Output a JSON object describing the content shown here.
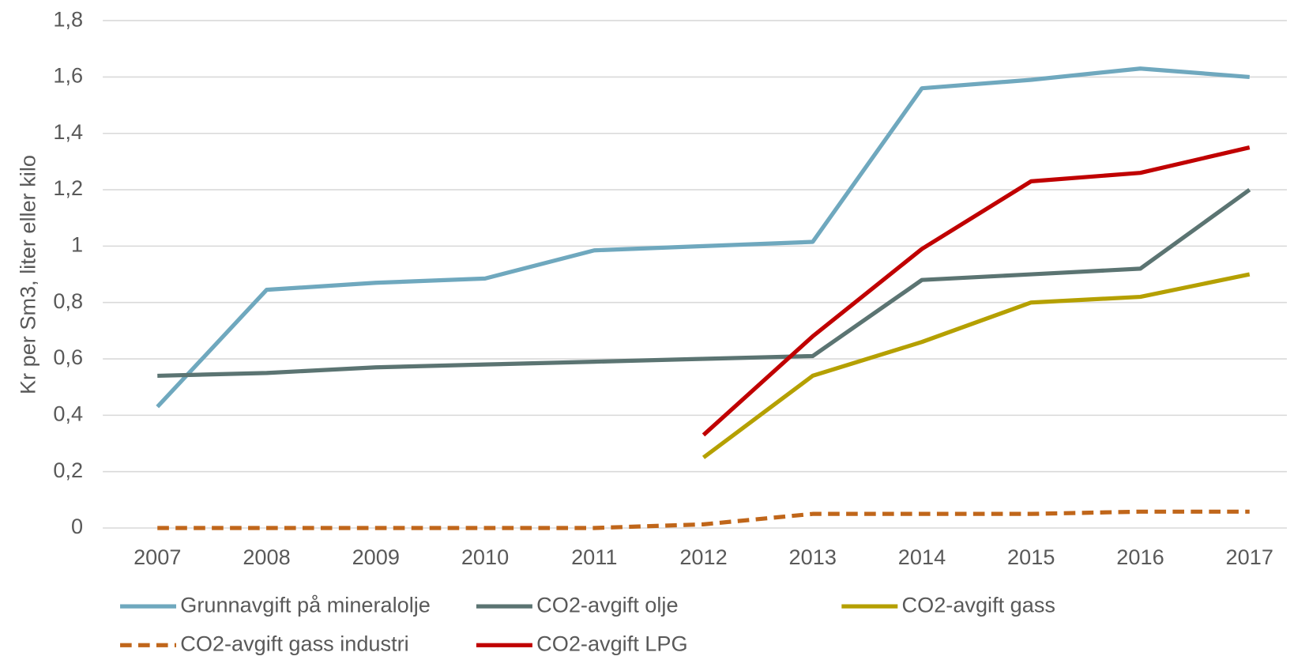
{
  "chart_data": {
    "type": "line",
    "y_label": "Kr per Sm3, liter eller kilo",
    "categories": [
      "2007",
      "2008",
      "2009",
      "2010",
      "2011",
      "2012",
      "2013",
      "2014",
      "2015",
      "2016",
      "2017"
    ],
    "series": [
      {
        "name": "Grunnavgift på mineralolje",
        "color": "#6fa8be",
        "dash": false,
        "values": [
          0.43,
          0.845,
          0.87,
          0.885,
          0.985,
          1.0,
          1.015,
          1.56,
          1.59,
          1.63,
          1.6
        ]
      },
      {
        "name": "CO2-avgift olje",
        "color": "#5b7472",
        "dash": false,
        "values": [
          0.54,
          0.55,
          0.57,
          0.58,
          0.59,
          0.6,
          0.61,
          0.88,
          0.9,
          0.92,
          1.2
        ]
      },
      {
        "name": "CO2-avgift gass",
        "color": "#b5a000",
        "dash": false,
        "values": [
          null,
          null,
          null,
          null,
          null,
          0.25,
          0.54,
          0.66,
          0.8,
          0.82,
          0.9
        ]
      },
      {
        "name": "CO2-avgift gass industri",
        "color": "#c0661a",
        "dash": true,
        "values": [
          0,
          0,
          0,
          0,
          0,
          0.013,
          0.05,
          0.05,
          0.05,
          0.058,
          0.058
        ]
      },
      {
        "name": "CO2-avgift LPG",
        "color": "#c00000",
        "dash": false,
        "values": [
          null,
          null,
          null,
          null,
          null,
          0.33,
          0.68,
          0.99,
          1.23,
          1.26,
          1.35
        ]
      }
    ],
    "ylim": [
      0,
      1.8
    ],
    "yticks": [
      0,
      {
        "value": 0.2,
        "label": "0,2"
      },
      {
        "value": 0.4,
        "label": "0,4"
      },
      {
        "value": 0.6,
        "label": "0,6"
      },
      {
        "value": 0.8,
        "label": "0,8"
      },
      1,
      {
        "value": 1.2,
        "label": "1,2"
      },
      {
        "value": 1.4,
        "label": "1,4"
      },
      {
        "value": 1.6,
        "label": "1,6"
      },
      {
        "value": 1.8,
        "label": "1,8"
      }
    ],
    "grid": true
  }
}
